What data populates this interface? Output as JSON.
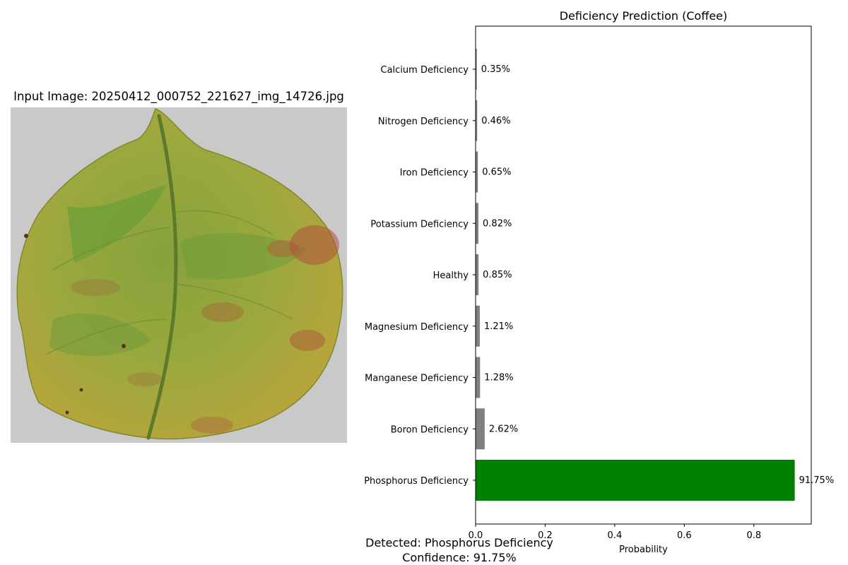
{
  "image_panel": {
    "title": "Input Image: 20250412_000752_221627_img_14726.jpg",
    "subject": "coffee leaf with yellowing and reddish-brown patches"
  },
  "result": {
    "detected": "Detected: Phosphorus Deficiency",
    "confidence": "Confidence: 91.75%"
  },
  "colors": {
    "highlight_bar": "#008000",
    "other_bars": "#808080"
  },
  "chart_data": {
    "type": "bar",
    "orientation": "horizontal",
    "title": "Deficiency Prediction (Coffee)",
    "xlabel": "Probability",
    "ylabel": "",
    "xlim": [
      0,
      0.965
    ],
    "xticks": [
      0.0,
      0.2,
      0.4,
      0.6,
      0.8
    ],
    "xtick_labels": [
      "0.0",
      "0.2",
      "0.4",
      "0.6",
      "0.8"
    ],
    "grid": false,
    "categories": [
      "Calcium Deficiency",
      "Nitrogen Deficiency",
      "Iron Deficiency",
      "Potassium Deficiency",
      "Healthy",
      "Magnesium Deficiency",
      "Manganese Deficiency",
      "Boron Deficiency",
      "Phosphorus Deficiency"
    ],
    "values": [
      0.0035,
      0.0046,
      0.0065,
      0.0082,
      0.0085,
      0.0121,
      0.0128,
      0.0262,
      0.9175
    ],
    "value_labels": [
      "0.35%",
      "0.46%",
      "0.65%",
      "0.82%",
      "0.85%",
      "1.21%",
      "1.28%",
      "2.62%",
      "91.75%"
    ],
    "highlight": "Phosphorus Deficiency"
  }
}
